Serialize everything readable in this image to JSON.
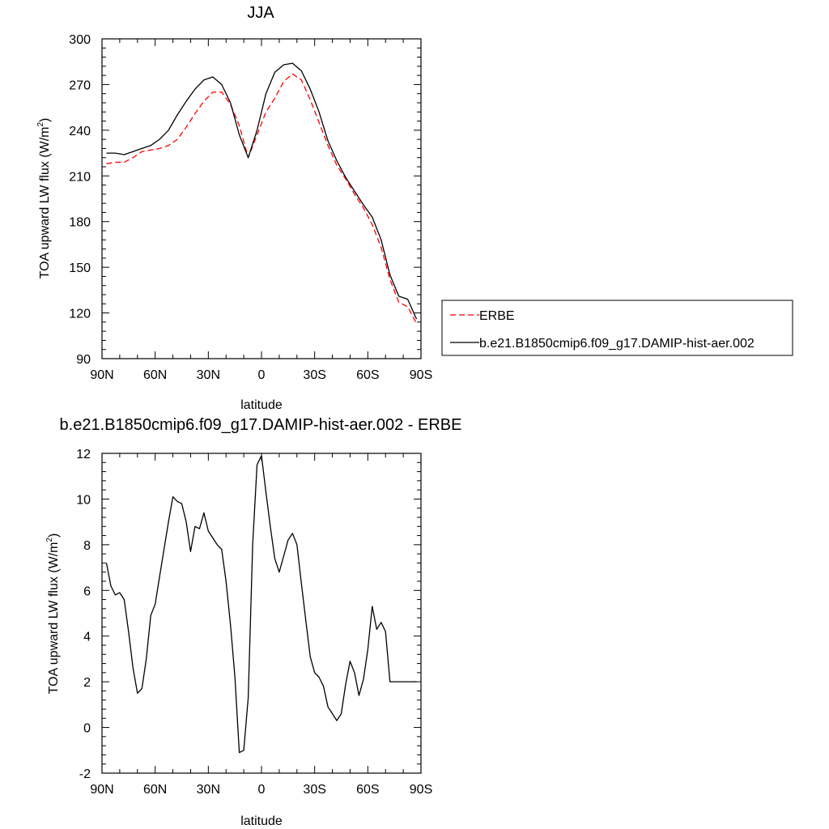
{
  "chart_data": [
    {
      "type": "line",
      "title": "JJA",
      "xlabel": "latitude",
      "ylabel": "TOA upward LW flux (W/m",
      "ylabel_sup": "2",
      "ylabel_end": ")",
      "xlim": [
        -90,
        90
      ],
      "ylim": [
        90,
        300
      ],
      "x_ticks": [
        -90,
        -60,
        -30,
        0,
        30,
        60,
        90
      ],
      "x_tick_labels": [
        "90N",
        "60N",
        "30N",
        "0",
        "30S",
        "60S",
        "90S"
      ],
      "y_ticks": [
        90,
        120,
        150,
        180,
        210,
        240,
        270,
        300
      ],
      "y_tick_labels": [
        "90",
        "120",
        "150",
        "180",
        "210",
        "240",
        "270",
        "300"
      ],
      "grid": false,
      "legend_position": "right-bottom outside",
      "series": [
        {
          "name": "ERBE",
          "color": "#ff0000",
          "dash": "dashed",
          "x": [
            -87.5,
            -82.5,
            -77.5,
            -72.5,
            -67.5,
            -62.5,
            -57.5,
            -52.5,
            -47.5,
            -42.5,
            -37.5,
            -32.5,
            -27.5,
            -22.5,
            -17.5,
            -12.5,
            -7.5,
            -2.5,
            2.5,
            7.5,
            12.5,
            17.5,
            22.5,
            27.5,
            32.5,
            37.5,
            42.5,
            47.5,
            52.5,
            57.5,
            62.5,
            67.5,
            72.5,
            77.5,
            82.5,
            87.5
          ],
          "y": [
            218,
            219,
            219,
            222,
            226,
            227,
            228,
            230,
            234,
            242,
            251,
            259,
            265,
            265,
            257,
            243,
            222,
            237,
            252,
            261,
            272,
            277,
            273,
            260,
            245,
            230,
            217,
            208,
            198,
            189,
            178,
            163,
            142,
            127,
            124,
            113
          ]
        },
        {
          "name": "b.e21.B1850cmip6.f09_g17.DAMIP-hist-aer.002",
          "color": "#000000",
          "dash": "solid",
          "x": [
            -87.5,
            -82.5,
            -77.5,
            -72.5,
            -67.5,
            -62.5,
            -57.5,
            -52.5,
            -47.5,
            -42.5,
            -37.5,
            -32.5,
            -27.5,
            -22.5,
            -17.5,
            -12.5,
            -7.5,
            -2.5,
            2.5,
            7.5,
            12.5,
            17.5,
            22.5,
            27.5,
            32.5,
            37.5,
            42.5,
            47.5,
            52.5,
            57.5,
            62.5,
            67.5,
            72.5,
            77.5,
            82.5,
            87.5
          ],
          "y": [
            225,
            225,
            224,
            226,
            228,
            230,
            234,
            240,
            250,
            259,
            267,
            273,
            275,
            270,
            258,
            237,
            222,
            240,
            264,
            278,
            283,
            284,
            279,
            267,
            252,
            233,
            220,
            209,
            200,
            191,
            183,
            168,
            145,
            131,
            129,
            116
          ]
        }
      ]
    },
    {
      "type": "line",
      "title": "b.e21.B1850cmip6.f09_g17.DAMIP-hist-aer.002 - ERBE",
      "xlabel": "latitude",
      "ylabel": "TOA upward LW flux (W/m",
      "ylabel_sup": "2",
      "ylabel_end": ")",
      "xlim": [
        -90,
        90
      ],
      "ylim": [
        -2,
        12
      ],
      "x_ticks": [
        -90,
        -60,
        -30,
        0,
        30,
        60,
        90
      ],
      "x_tick_labels": [
        "90N",
        "60N",
        "30N",
        "0",
        "30S",
        "60S",
        "90S"
      ],
      "y_ticks": [
        -2,
        0,
        2,
        4,
        6,
        8,
        10,
        12
      ],
      "y_tick_labels": [
        "-2",
        "0",
        "2",
        "4",
        "6",
        "8",
        "10",
        "12"
      ],
      "grid": false,
      "series": [
        {
          "color": "#000000",
          "dash": "solid",
          "x": [
            -87.5,
            -85,
            -82.5,
            -80,
            -77.5,
            -75,
            -72.5,
            -70,
            -67.5,
            -65,
            -62.5,
            -60,
            -57.5,
            -55,
            -52.5,
            -50,
            -47.5,
            -45,
            -42.5,
            -40,
            -37.5,
            -35,
            -32.5,
            -30,
            -27.5,
            -25,
            -22.5,
            -20,
            -17.5,
            -15,
            -12.5,
            -10,
            -7.5,
            -5,
            -2.5,
            0,
            2.5,
            5,
            7.5,
            10,
            12.5,
            15,
            17.5,
            20,
            22.5,
            25,
            27.5,
            30,
            32.5,
            35,
            37.5,
            40,
            42.5,
            45,
            47.5,
            50,
            52.5,
            55,
            57.5,
            60,
            62.5,
            65,
            67.5,
            70,
            72.5,
            75,
            77.5,
            80,
            82.5,
            85,
            87.5
          ],
          "y": [
            7.2,
            6.2,
            5.8,
            5.9,
            5.6,
            4.2,
            2.6,
            1.5,
            1.7,
            3.0,
            4.9,
            5.4,
            6.6,
            7.8,
            9.0,
            10.1,
            9.9,
            9.8,
            9.0,
            7.7,
            8.8,
            8.7,
            9.4,
            8.6,
            8.3,
            8.0,
            7.8,
            6.4,
            4.5,
            2.2,
            -1.1,
            -1.0,
            1.3,
            8.0,
            11.5,
            11.9,
            10.3,
            8.8,
            7.4,
            6.8,
            7.5,
            8.2,
            8.5,
            8.0,
            6.3,
            4.7,
            3.1,
            2.4,
            2.2,
            1.8,
            0.9,
            0.6,
            0.3,
            0.6,
            1.9,
            2.9,
            2.4,
            1.4,
            2.1,
            3.4,
            5.3,
            4.3,
            4.6,
            4.2,
            2.0,
            2.0,
            2.0,
            2.0,
            2.0,
            2.0,
            2.0
          ]
        }
      ]
    }
  ]
}
